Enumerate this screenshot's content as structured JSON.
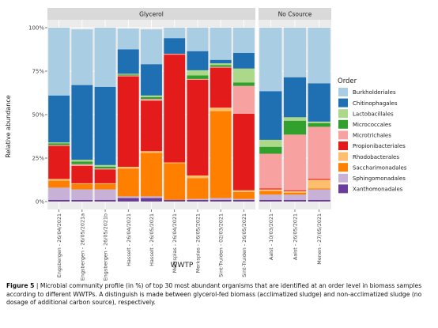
{
  "chart_data": {
    "type": "bar",
    "stacked": true,
    "ylabel": "Relative abundance",
    "xlabel": "WWTP",
    "ylim": [
      0,
      100
    ],
    "yticks": [
      "0%",
      "25%",
      "50%",
      "75%",
      "100%"
    ],
    "grid": true,
    "legend_position": "right",
    "legend_title": "Order",
    "orders": [
      "Burkholderiales",
      "Chitinophagales",
      "Lactobacillales",
      "Micrococcales",
      "Microtrichales",
      "Propionibacteriales",
      "Rhodobacterales",
      "Saccharimonadales",
      "Sphingomonadales",
      "Xanthomonadales"
    ],
    "colors": [
      "#a9cde2",
      "#1f6fb3",
      "#acd88a",
      "#32a02c",
      "#f7a1a1",
      "#e31b1b",
      "#fdbf6d",
      "#ff8000",
      "#c8b1d6",
      "#6a3d9a"
    ],
    "panels": [
      {
        "title": "Glycerol",
        "categories": [
          "Engsbergen - 26/04/2021",
          "Engsbergen - 26/05/2021a",
          "Engsbergen - 26/05/2021b",
          "Hasselt - 26/04/2021",
          "Hasselt - 26/05/2021",
          "Merksplas - 26/04/2021",
          "Merksplas - 26/05/2021",
          "Sint-Truiden - 02/03/2021",
          "Sint-Truiden - 26/05/2021"
        ],
        "series": [
          {
            "name": "Xanthomonadales",
            "values": [
              1,
              1,
              1,
              2,
              2,
              1,
              1,
              1,
              1
            ]
          },
          {
            "name": "Sphingomonadales",
            "values": [
              7,
              6,
              6,
              1,
              1,
              0,
              0.5,
              1,
              0.5
            ]
          },
          {
            "name": "Saccharimonadales",
            "values": [
              4,
              3,
              3,
              16,
              25,
              21,
              12,
              50,
              4
            ]
          },
          {
            "name": "Rhodobacterales",
            "values": [
              1,
              0.5,
              0.5,
              1,
              1,
              0.5,
              1.5,
              2,
              1
            ]
          },
          {
            "name": "Propionibacteriales",
            "values": [
              19,
              10,
              8,
              52,
              29,
              62,
              55,
              23,
              44
            ]
          },
          {
            "name": "Microtrichales",
            "values": [
              0.5,
              1,
              0.5,
              0.5,
              1,
              0.5,
              0.5,
              0.5,
              16
            ]
          },
          {
            "name": "Micrococcales",
            "values": [
              1,
              1.5,
              1,
              0.5,
              1,
              0,
              2,
              1,
              2
            ]
          },
          {
            "name": "Lactobacillales",
            "values": [
              0.5,
              1,
              1,
              0.5,
              1,
              0,
              3,
              1,
              8
            ]
          },
          {
            "name": "Chitinophagales",
            "values": [
              27,
              43,
              45,
              14,
              18,
              9,
              11,
              2,
              9
            ]
          },
          {
            "name": "Burkholderiales",
            "values": [
              39,
              32,
              34,
              12,
              20,
              6,
              13.5,
              18.5,
              14.5
            ]
          }
        ]
      },
      {
        "title": "No Csource",
        "categories": [
          "Aalst - 10/03/2021",
          "Aalst - 26/05/2021",
          "Menen - 27/05/2021"
        ],
        "series": [
          {
            "name": "Xanthomonadales",
            "values": [
              1,
              1,
              1
            ]
          },
          {
            "name": "Sphingomonadales",
            "values": [
              3,
              3,
              6
            ]
          },
          {
            "name": "Saccharimonadales",
            "values": [
              2,
              1,
              0.5
            ]
          },
          {
            "name": "Rhodobacterales",
            "values": [
              1,
              1,
              5
            ]
          },
          {
            "name": "Propionibacteriales",
            "values": [
              0.5,
              0.5,
              0.5
            ]
          },
          {
            "name": "Microtrichales",
            "values": [
              20,
              32,
              30
            ]
          },
          {
            "name": "Micrococcales",
            "values": [
              4,
              8,
              2
            ]
          },
          {
            "name": "Lactobacillales",
            "values": [
              4,
              2,
              1
            ]
          },
          {
            "name": "Chitinophagales",
            "values": [
              28,
              23,
              22
            ]
          },
          {
            "name": "Burkholderiales",
            "values": [
              36.5,
              28.5,
              32
            ]
          }
        ]
      }
    ]
  },
  "caption": {
    "label": "Figure 5",
    "text": " | Microbial community profile (in %) of top 30 most abundant organisms that are identified at an order level in biomass samples according to different WWTPs. A distinguish is made between glycerol-fed biomass (acclimatized sludge) and non-acclimatized sludge (no dosage of additional carbon source), respectively."
  }
}
